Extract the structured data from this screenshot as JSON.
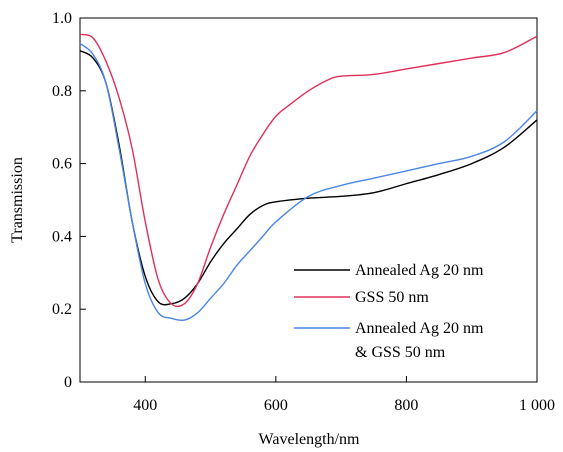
{
  "chart_data": {
    "type": "line",
    "title": "",
    "xlabel": "Wavelength/nm",
    "ylabel": "Transmission",
    "xlim": [
      300,
      1000
    ],
    "ylim": [
      0,
      1.0
    ],
    "x_ticks": [
      400,
      600,
      800,
      1000
    ],
    "x_tick_labels": [
      "400",
      "600",
      "800",
      "1 000"
    ],
    "y_ticks": [
      0,
      0.2,
      0.4,
      0.6,
      0.8,
      1.0
    ],
    "y_tick_labels": [
      "0",
      "0.2",
      "0.4",
      "0.6",
      "0.8",
      "1.0"
    ],
    "grid": false,
    "legend_position": "lower-right",
    "series": [
      {
        "name": "Annealed Ag 20 nm",
        "color": "#000000",
        "x": [
          300,
          320,
          340,
          360,
          380,
          400,
          420,
          440,
          460,
          480,
          500,
          520,
          540,
          560,
          580,
          600,
          650,
          700,
          750,
          800,
          850,
          900,
          950,
          1000
        ],
        "y": [
          0.91,
          0.89,
          0.82,
          0.65,
          0.44,
          0.29,
          0.22,
          0.215,
          0.23,
          0.27,
          0.33,
          0.38,
          0.42,
          0.46,
          0.485,
          0.495,
          0.505,
          0.51,
          0.52,
          0.545,
          0.57,
          0.6,
          0.645,
          0.72
        ]
      },
      {
        "name": "GSS 50 nm",
        "color": "#e0305a",
        "x": [
          300,
          320,
          340,
          360,
          380,
          400,
          420,
          440,
          460,
          480,
          500,
          520,
          540,
          560,
          580,
          600,
          620,
          650,
          680,
          700,
          750,
          800,
          850,
          900,
          950,
          1000
        ],
        "y": [
          0.955,
          0.945,
          0.88,
          0.78,
          0.64,
          0.44,
          0.28,
          0.215,
          0.215,
          0.27,
          0.37,
          0.46,
          0.54,
          0.62,
          0.68,
          0.73,
          0.76,
          0.8,
          0.83,
          0.84,
          0.845,
          0.86,
          0.875,
          0.89,
          0.905,
          0.95
        ]
      },
      {
        "name": "Annealed Ag 20 nm & GSS 50 nm",
        "color": "#4a86e8",
        "x": [
          300,
          320,
          340,
          360,
          380,
          400,
          420,
          440,
          460,
          480,
          500,
          520,
          540,
          560,
          580,
          600,
          650,
          700,
          750,
          800,
          850,
          900,
          950,
          1000
        ],
        "y": [
          0.93,
          0.9,
          0.82,
          0.64,
          0.44,
          0.27,
          0.19,
          0.175,
          0.17,
          0.19,
          0.23,
          0.27,
          0.32,
          0.36,
          0.4,
          0.44,
          0.51,
          0.54,
          0.56,
          0.58,
          0.6,
          0.62,
          0.66,
          0.745
        ]
      }
    ],
    "legend_lines": [
      [
        "Annealed Ag 20 nm"
      ],
      [
        "GSS 50 nm"
      ],
      [
        "Annealed Ag 20 nm",
        "& GSS 50 nm"
      ]
    ]
  }
}
